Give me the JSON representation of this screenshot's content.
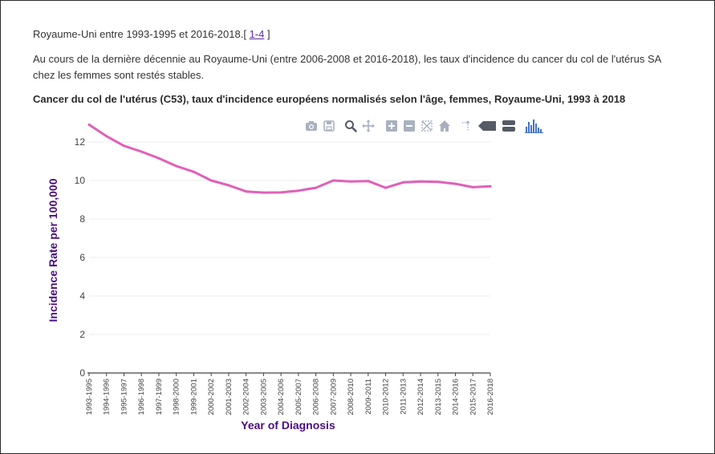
{
  "text": {
    "line1_prefix": "Royaume-Uni entre 1993-1995 et 2016-2018.[ ",
    "line1_link": "1-4",
    "line1_suffix": " ]",
    "paragraph": "Au cours de la dernière décennie au Royaume-Uni (entre 2006-2008 et 2016-2018), les taux d'incidence du cancer du col de l'utérus SA chez les femmes sont restés stables."
  },
  "colors": {
    "line": "#e060b8",
    "axis_title": "#4b0f7d",
    "modebar_icon": "#a9b1bf",
    "modebar_active": "#4472c4"
  },
  "modebar": [
    {
      "name": "camera-icon"
    },
    {
      "name": "save-icon"
    },
    {
      "name": "zoom-icon"
    },
    {
      "name": "pan-icon"
    },
    {
      "name": "zoom-in-icon"
    },
    {
      "name": "zoom-out-icon"
    },
    {
      "name": "autoscale-icon"
    },
    {
      "name": "home-icon"
    },
    {
      "name": "spike-lines-icon"
    },
    {
      "name": "hover-closest-icon"
    },
    {
      "name": "hover-compare-icon"
    },
    {
      "name": "plotly-logo-icon"
    }
  ],
  "chart_data": {
    "type": "line",
    "title": "Cancer du col de l'utérus (C53), taux d'incidence européens normalisés selon l'âge, femmes, Royaume-Uni, 1993 à 2018",
    "xlabel": "Year of Diagnosis",
    "ylabel": "Incidence Rate per 100,000",
    "ylim": [
      0,
      13
    ],
    "yticks": [
      0,
      2,
      4,
      6,
      8,
      10,
      12
    ],
    "grid": true,
    "categories": [
      "1993-1995",
      "1994-1996",
      "1995-1997",
      "1996-1998",
      "1997-1999",
      "1998-2000",
      "1999-2001",
      "2000-2002",
      "2001-2003",
      "2002-2004",
      "2003-2005",
      "2004-2006",
      "2005-2007",
      "2006-2008",
      "2007-2009",
      "2008-2010",
      "2009-2011",
      "2010-2012",
      "2011-2013",
      "2012-2014",
      "2013-2015",
      "2014-2016",
      "2015-2017",
      "2016-2018"
    ],
    "series": [
      {
        "values": [
          12.9,
          12.3,
          11.8,
          11.5,
          11.15,
          10.75,
          10.45,
          10.0,
          9.75,
          9.43,
          9.37,
          9.38,
          9.47,
          9.62,
          10.0,
          9.95,
          9.97,
          9.62,
          9.9,
          9.95,
          9.93,
          9.83,
          9.65,
          9.7
        ]
      }
    ]
  }
}
